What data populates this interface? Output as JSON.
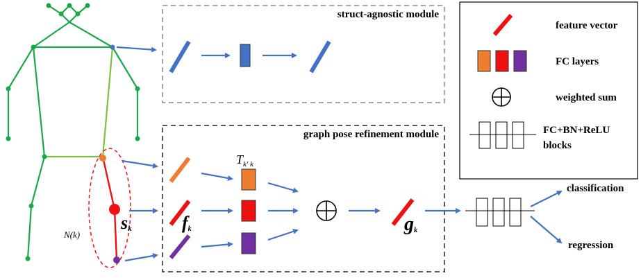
{
  "modules": {
    "struct_agnostic": "struct-agnostic module",
    "graph_refinement": "graph pose refinement module"
  },
  "legend": {
    "feature_vector": "feature vector",
    "fc_layers": "FC layers",
    "weighted_sum": "weighted sum",
    "blocks": [
      "FC+BN+ReLU",
      "blocks"
    ]
  },
  "symbols": {
    "s": {
      "main": "s",
      "sub": "k"
    },
    "f": {
      "main": "f",
      "sub": "k"
    },
    "g": {
      "main": "g",
      "sub": "k"
    },
    "t": {
      "main": "T",
      "sub": "k′ k"
    },
    "n": "N(k)"
  },
  "outputs": {
    "classification": "classification",
    "regression": "regression"
  }
}
